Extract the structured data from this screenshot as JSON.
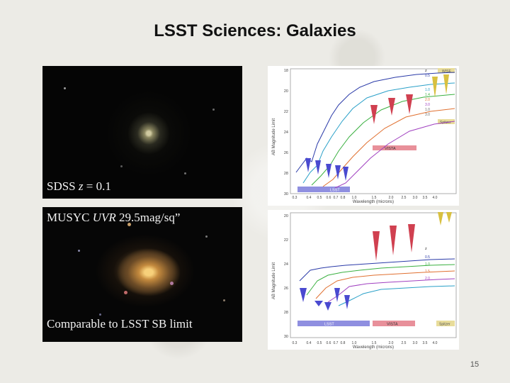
{
  "slide": {
    "title": "LSST Sciences: Galaxies",
    "page_number": "15"
  },
  "photos": [
    {
      "caption_prefix": "SDSS ",
      "caption_italic": "z",
      "caption_suffix": " = 0.1"
    },
    {
      "caption_prefix": "MUSYC ",
      "caption_italic": "UVR",
      "caption_suffix": "  29.5mag/sq”",
      "caption_bottom": "Comparable to LSST SB limit"
    }
  ],
  "charts": [
    {
      "ylabel": "AB Magnitude Limit",
      "xlabel": "Wavelength (microns)",
      "y_ticks": [
        "18",
        "20",
        "22",
        "24",
        "26",
        "28",
        "30"
      ],
      "x_ticks": [
        "0.3",
        "0.4",
        "0.5",
        "0.6",
        "0.7",
        "0.8",
        "1.0",
        "1.5",
        "2.0",
        "2.5",
        "3.0",
        "3.5",
        "4.0"
      ],
      "legend_header": "z",
      "legend_values": [
        "0.5",
        "1.0",
        "1.4",
        "2.0",
        "3.0",
        "1.0",
        "3.0"
      ],
      "band_labels": {
        "lsst": "LSST",
        "vista": "VISTA",
        "spitzer": "Spitzer",
        "wise": "WISE"
      },
      "colors": {
        "lsst": "#8f8fe0",
        "vista": "#e8909a",
        "spitzer": "#e8dc9a",
        "wise": "#e8dc9a"
      }
    },
    {
      "ylabel": "AB Magnitude Limit",
      "xlabel": "Wavelength (microns)",
      "y_ticks": [
        "20",
        "22",
        "24",
        "26",
        "28",
        "30"
      ],
      "x_ticks": [
        "0.3",
        "0.4",
        "0.5",
        "0.6",
        "0.7",
        "0.8",
        "1.0",
        "1.5",
        "2.0",
        "2.5",
        "3.0",
        "3.5",
        "4.0"
      ],
      "legend_header": "z",
      "legend_values": [
        "0.5",
        "1.0",
        "1.5",
        "2.0"
      ],
      "band_labels": {
        "lsst": "LSST",
        "vista": "VISTA",
        "spitzer": "Spitzer"
      },
      "colors": {
        "lsst": "#8f8fe0",
        "vista": "#e8909a",
        "spitzer": "#e8dc9a"
      }
    }
  ]
}
